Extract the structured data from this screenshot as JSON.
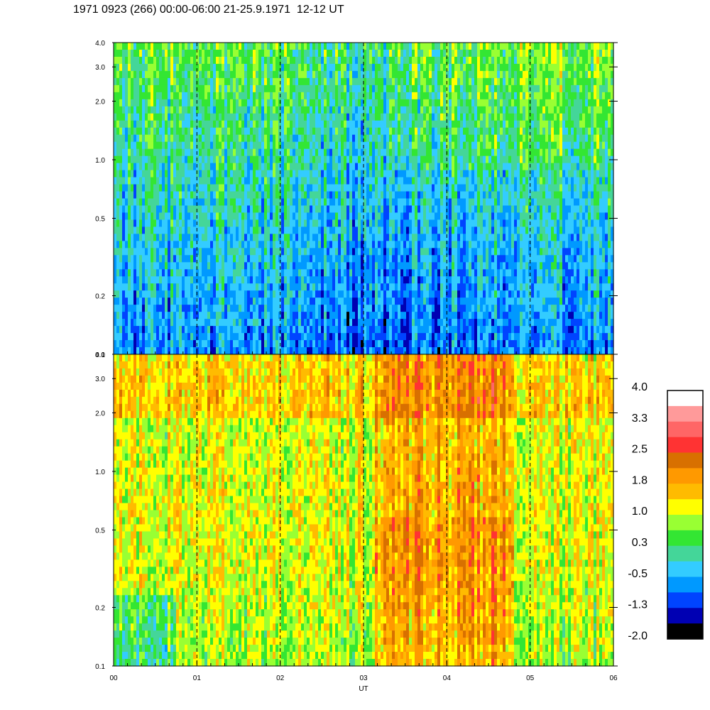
{
  "title": "1971 0923 (266) 00:00-06:00 21-25.9.1971  12-12 UT",
  "chart_data": [
    {
      "type": "heatmap",
      "panel": "top",
      "x_range": [
        0,
        6
      ],
      "y_scale": "log",
      "y_range": [
        0.1,
        4.0
      ],
      "y_ticks": [
        "0.1",
        "0.2",
        "0.5",
        "1.0",
        "2.0",
        "3.0",
        "4.0"
      ],
      "x_ticks": [
        "00",
        "01",
        "02",
        "03",
        "04",
        "05",
        "06"
      ],
      "hour_markers": [
        1,
        2,
        3,
        4,
        5
      ],
      "dominant_levels": "green/cyan/blue, approx -1.3 to 0.8"
    },
    {
      "type": "heatmap",
      "panel": "bottom",
      "x_range": [
        0,
        6
      ],
      "y_scale": "log",
      "y_range": [
        0.1,
        4.0
      ],
      "y_ticks": [
        "0.1",
        "0.2",
        "0.5",
        "1.0",
        "2.0",
        "3.0",
        "4.0"
      ],
      "x_ticks": [
        "00",
        "01",
        "02",
        "03",
        "04",
        "05",
        "06"
      ],
      "xlabel": "UT",
      "hour_markers": [
        1,
        2,
        3,
        4,
        5
      ],
      "dominant_levels": "green/yellow/orange, approx 0.3 to 2.5"
    }
  ],
  "colorbar": {
    "labels": [
      "4.0",
      "3.3",
      "2.5",
      "1.8",
      "1.0",
      "0.3",
      "-0.5",
      "-1.3",
      "-2.0"
    ],
    "colors": [
      "#ffffff",
      "#ff9a9a",
      "#ff6666",
      "#ff3333",
      "#d87000",
      "#ff9900",
      "#ffbb00",
      "#ffff00",
      "#99ff33",
      "#33e633",
      "#44d699",
      "#33ccff",
      "#0099ff",
      "#0044ff",
      "#0000b3",
      "#000000"
    ]
  }
}
